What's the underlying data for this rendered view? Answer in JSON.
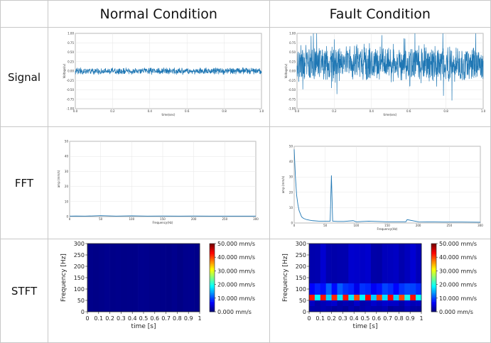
{
  "headers": {
    "col_normal": "Normal Condition",
    "col_fault": "Fault Condition",
    "row_signal": "Signal",
    "row_fft": "FFT",
    "row_stft": "STFT"
  },
  "colors": {
    "line": "#1f77b4",
    "grid": "#e5e5e5",
    "cell_border": "#c8c8c8"
  },
  "chart_data": [
    {
      "id": "signal-normal",
      "type": "line",
      "xlabel": "time(sec)",
      "ylabel": "Voltage(v)",
      "xlim": [
        0,
        1.0
      ],
      "ylim": [
        -1.0,
        1.0
      ],
      "xticks": [
        "0.0",
        "0.2",
        "0.4",
        "0.6",
        "0.8",
        "1.0"
      ],
      "yticks": [
        "-1.00",
        "-0.75",
        "-0.50",
        "-0.25",
        "0.00",
        "0.25",
        "0.50",
        "0.75",
        "1.00"
      ],
      "grid": true,
      "series": [
        {
          "mean": 0.0,
          "amplitude": 0.1
        }
      ]
    },
    {
      "id": "signal-fault",
      "type": "line",
      "xlabel": "time(sec)",
      "ylabel": "Voltage(v)",
      "xlim": [
        0,
        1.0
      ],
      "ylim": [
        -1.0,
        1.0
      ],
      "xticks": [
        "0.0",
        "0.2",
        "0.4",
        "0.6",
        "0.8",
        "1.0"
      ],
      "yticks": [
        "-1.00",
        "-0.75",
        "-0.50",
        "-0.25",
        "0.00",
        "0.25",
        "0.50",
        "0.75",
        "1.00"
      ],
      "grid": true,
      "series": [
        {
          "mean": 0.2,
          "amplitude": 0.55
        }
      ]
    },
    {
      "id": "fft-normal",
      "type": "line",
      "xlabel": "Frequency(Hz)",
      "ylabel": "amp (mm/s)",
      "xlim": [
        0,
        300
      ],
      "ylim": [
        0,
        50
      ],
      "xticks": [
        "0",
        "50",
        "100",
        "150",
        "200",
        "250",
        "300"
      ],
      "yticks": [
        "0",
        "10",
        "20",
        "30",
        "40",
        "50"
      ],
      "grid": true,
      "x": [
        0,
        10,
        25,
        50,
        75,
        100,
        125,
        150,
        175,
        200,
        225,
        250,
        275,
        300
      ],
      "y": [
        0.3,
        0.4,
        0.3,
        0.6,
        0.3,
        0.5,
        0.3,
        0.4,
        0.3,
        0.4,
        0.3,
        0.3,
        0.3,
        0.3
      ]
    },
    {
      "id": "fft-fault",
      "type": "line",
      "xlabel": "Frequency(Hz)",
      "ylabel": "amp (mm/s)",
      "xlim": [
        0,
        300
      ],
      "ylim": [
        0,
        50
      ],
      "xticks": [
        "0",
        "50",
        "100",
        "150",
        "200",
        "250",
        "300"
      ],
      "yticks": [
        "0",
        "10",
        "20",
        "30",
        "40",
        "50"
      ],
      "grid": true,
      "x": [
        0,
        2,
        4,
        6,
        8,
        10,
        12,
        15,
        20,
        25,
        30,
        40,
        50,
        58,
        60,
        62,
        70,
        80,
        95,
        100,
        120,
        150,
        180,
        182,
        200,
        240,
        270,
        300
      ],
      "y": [
        48,
        30,
        18,
        12,
        8,
        6,
        4,
        3,
        2.2,
        1.8,
        1.5,
        1.2,
        1.2,
        1.2,
        31,
        1.2,
        1,
        1,
        1.5,
        0.8,
        1.2,
        0.8,
        0.8,
        2.2,
        0.8,
        0.6,
        0.6,
        0.5
      ]
    },
    {
      "id": "stft-normal",
      "type": "heatmap",
      "xlabel": "time [s]",
      "ylabel": "Frequency [Hz]",
      "xlim": [
        0,
        1
      ],
      "ylim": [
        0,
        300
      ],
      "xticks": [
        "0",
        "0.1",
        "0.2",
        "0.3",
        "0.4",
        "0.5",
        "0.6",
        "0.7",
        "0.8",
        "0.9",
        "1"
      ],
      "yticks": [
        "0",
        "50",
        "100",
        "150",
        "200",
        "250",
        "300"
      ],
      "colorbar_ticks": [
        "0.000 mm/s",
        "10.000 mm/s",
        "20.000 mm/s",
        "30.000 mm/s",
        "40.000 mm/s",
        "50.000 mm/s"
      ],
      "vmin": 0,
      "vmax": 50,
      "bands": [
        {
          "f_lo": 0,
          "f_hi": 300,
          "value": 0.5
        }
      ]
    },
    {
      "id": "stft-fault",
      "type": "heatmap",
      "xlabel": "time [s]",
      "ylabel": "Frequency [Hz]",
      "xlim": [
        0,
        1
      ],
      "ylim": [
        0,
        300
      ],
      "xticks": [
        "0",
        "0.1",
        "0.2",
        "0.3",
        "0.4",
        "0.5",
        "0.6",
        "0.7",
        "0.8",
        "0.9",
        "1"
      ],
      "yticks": [
        "0",
        "50",
        "100",
        "150",
        "200",
        "250",
        "300"
      ],
      "colorbar_ticks": [
        "0.000 mm/s",
        "10.000 mm/s",
        "20.000 mm/s",
        "30.000 mm/s",
        "40.000 mm/s",
        "50.000 mm/s"
      ],
      "vmin": 0,
      "vmax": 50,
      "bands": [
        {
          "f_lo": 0,
          "f_hi": 25,
          "value": 2
        },
        {
          "f_lo": 25,
          "f_hi": 50,
          "value": 3
        },
        {
          "f_lo": 50,
          "f_hi": 75,
          "value": 30
        },
        {
          "f_lo": 75,
          "f_hi": 125,
          "value": 8
        },
        {
          "f_lo": 125,
          "f_hi": 300,
          "value": 3
        }
      ]
    }
  ]
}
